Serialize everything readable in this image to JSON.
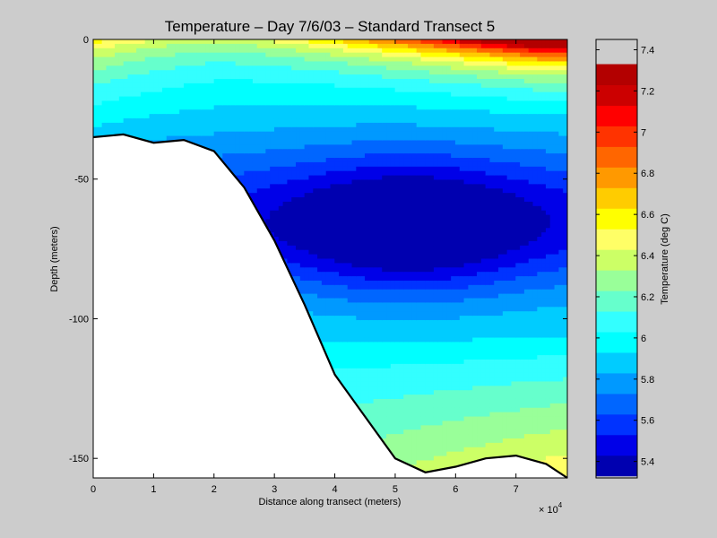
{
  "chart_data": {
    "type": "contour",
    "title": "Temperature – Day 7/6/03 – Standard Transect 5",
    "xlabel": "Distance along transect (meters)",
    "ylabel": "Depth (meters)",
    "x_multiplier_label": "× 10",
    "x_multiplier_exponent": "4",
    "xlim": [
      0,
      78500
    ],
    "ylim": [
      -157,
      0
    ],
    "x_ticks": [
      0,
      10000,
      20000,
      30000,
      40000,
      50000,
      60000,
      70000
    ],
    "x_tick_labels": [
      "0",
      "1",
      "2",
      "3",
      "4",
      "5",
      "6",
      "7"
    ],
    "y_ticks": [
      0,
      -50,
      -100,
      -150
    ],
    "y_tick_labels": [
      "0",
      "-50",
      "-100",
      "-150"
    ],
    "colorbar": {
      "label": "Temperature (deg C)",
      "range": [
        5.32,
        7.45
      ],
      "levels": [
        5.33,
        5.43,
        5.53,
        5.63,
        5.73,
        5.83,
        5.93,
        6.03,
        6.13,
        6.23,
        6.33,
        6.43,
        6.53,
        6.63,
        6.73,
        6.83,
        6.93,
        7.03,
        7.13,
        7.23,
        7.33,
        7.45
      ],
      "colors": [
        "#0000b0",
        "#0000e8",
        "#0033ff",
        "#0066ff",
        "#0099ff",
        "#00ccff",
        "#00ffff",
        "#33ffff",
        "#66ffcc",
        "#99ff99",
        "#ccff66",
        "#ffff66",
        "#ffff00",
        "#ffcc00",
        "#ff9900",
        "#ff6600",
        "#ff3300",
        "#ff0000",
        "#cc0000",
        "#b30000"
      ],
      "ticks": [
        5.4,
        5.6,
        5.8,
        6.0,
        6.2,
        6.4,
        6.6,
        6.8,
        7.0,
        7.2,
        7.4
      ],
      "tick_labels": [
        "5.4",
        "5.6",
        "5.8",
        "6",
        "6.2",
        "6.4",
        "6.6",
        "6.8",
        "7",
        "7.2",
        "7.4"
      ]
    },
    "bottom_profile": {
      "x": [
        0,
        5000,
        10000,
        15000,
        20000,
        25000,
        30000,
        35000,
        40000,
        45000,
        50000,
        55000,
        60000,
        65000,
        70000,
        75000,
        78500
      ],
      "depth": [
        -35,
        -34,
        -37,
        -36,
        -40,
        -53,
        -72,
        -95,
        -120,
        -135,
        -150,
        -155,
        -153,
        -150,
        -149,
        -152,
        -157
      ]
    }
  }
}
